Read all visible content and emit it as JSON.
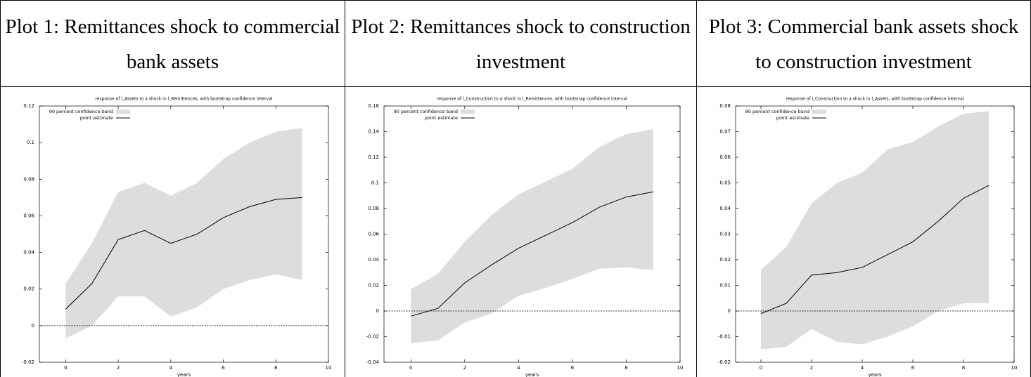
{
  "headers": [
    "Plot 1: Remittances shock to commercial bank assets",
    "Plot 2: Remittances shock to construction investment",
    "Plot 3:  Commercial bank assets shock to construction investment"
  ],
  "chart_data": [
    {
      "type": "line",
      "title": "response of l_Assets to a shock in l_Remittences, with bootstrap confidence interval",
      "xlabel": "years",
      "x": [
        0,
        1,
        2,
        3,
        4,
        5,
        6,
        7,
        8,
        9
      ],
      "xlim": [
        -1,
        10
      ],
      "xticks": [
        0,
        2,
        4,
        6,
        8,
        10
      ],
      "ylim": [
        -0.02,
        0.12
      ],
      "yticks": [
        -0.02,
        0,
        0.02,
        0.04,
        0.06,
        0.08,
        0.1,
        0.12
      ],
      "legend": "upper left",
      "series": [
        {
          "name": "90 percent confidence band",
          "color": "#dddddd",
          "upper": [
            0.023,
            0.045,
            0.073,
            0.078,
            0.071,
            0.078,
            0.091,
            0.1,
            0.106,
            0.108
          ],
          "lower": [
            -0.007,
            0.0,
            0.016,
            0.016,
            0.005,
            0.01,
            0.02,
            0.025,
            0.028,
            0.025
          ]
        },
        {
          "name": "point estimate",
          "color": "#000000",
          "values": [
            0.009,
            0.023,
            0.047,
            0.052,
            0.045,
            0.05,
            0.059,
            0.065,
            0.069,
            0.07
          ]
        }
      ]
    },
    {
      "type": "line",
      "title": "response of l_Construction to a shock in l_Remittences, with bootstrap confidence interval",
      "xlabel": "years",
      "x": [
        0,
        1,
        2,
        3,
        4,
        5,
        6,
        7,
        8,
        9
      ],
      "xlim": [
        -1,
        10
      ],
      "xticks": [
        0,
        2,
        4,
        6,
        8,
        10
      ],
      "ylim": [
        -0.04,
        0.16
      ],
      "yticks": [
        -0.04,
        -0.02,
        0,
        0.02,
        0.04,
        0.06,
        0.08,
        0.1,
        0.12,
        0.14,
        0.16
      ],
      "legend": "upper left",
      "series": [
        {
          "name": "90 percent confidence band",
          "color": "#dddddd",
          "upper": [
            0.017,
            0.029,
            0.054,
            0.075,
            0.091,
            0.101,
            0.111,
            0.128,
            0.138,
            0.142
          ],
          "lower": [
            -0.025,
            -0.023,
            -0.009,
            -0.002,
            0.012,
            0.018,
            0.025,
            0.033,
            0.034,
            0.032
          ]
        },
        {
          "name": "point estimate",
          "color": "#000000",
          "values": [
            -0.004,
            0.002,
            0.022,
            0.036,
            0.049,
            0.059,
            0.069,
            0.081,
            0.089,
            0.093
          ]
        }
      ]
    },
    {
      "type": "line",
      "title": "response of l_Construction to a shock in l_Assets, with bootstrap confidence interval",
      "xlabel": "years",
      "x": [
        0,
        1,
        2,
        3,
        4,
        5,
        6,
        7,
        8,
        9
      ],
      "xlim": [
        -1,
        10
      ],
      "xticks": [
        0,
        2,
        4,
        6,
        8,
        10
      ],
      "ylim": [
        -0.02,
        0.08
      ],
      "yticks": [
        -0.02,
        -0.01,
        0,
        0.01,
        0.02,
        0.03,
        0.04,
        0.05,
        0.06,
        0.07,
        0.08
      ],
      "legend": "upper left",
      "series": [
        {
          "name": "80 percent confidence band",
          "color": "#dddddd",
          "upper": [
            0.016,
            0.025,
            0.042,
            0.05,
            0.054,
            0.063,
            0.066,
            0.072,
            0.077,
            0.078
          ],
          "lower": [
            -0.015,
            -0.014,
            -0.007,
            -0.012,
            -0.013,
            -0.01,
            -0.006,
            0.0,
            0.003,
            0.003
          ]
        },
        {
          "name": "point estimate",
          "color": "#000000",
          "values": [
            -0.001,
            0.003,
            0.014,
            0.015,
            0.017,
            0.022,
            0.027,
            0.035,
            0.044,
            0.049
          ]
        }
      ]
    }
  ]
}
